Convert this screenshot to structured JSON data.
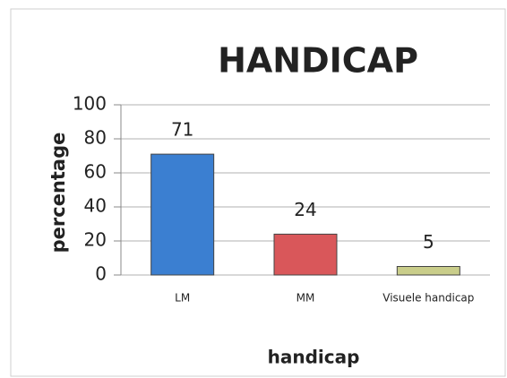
{
  "chart_data": {
    "type": "bar",
    "title": "HANDICAP",
    "x_label": "handicap",
    "y_label": "percentage",
    "categories": [
      "LM",
      "MM",
      "Visuele handicap"
    ],
    "values": [
      71,
      24,
      5
    ],
    "colors": [
      "#3b7fd1",
      "#d9575a",
      "#c9cd8a"
    ],
    "ylim": [
      0,
      100
    ],
    "yticks": [
      0,
      20,
      40,
      60,
      80,
      100
    ],
    "grid": true
  }
}
